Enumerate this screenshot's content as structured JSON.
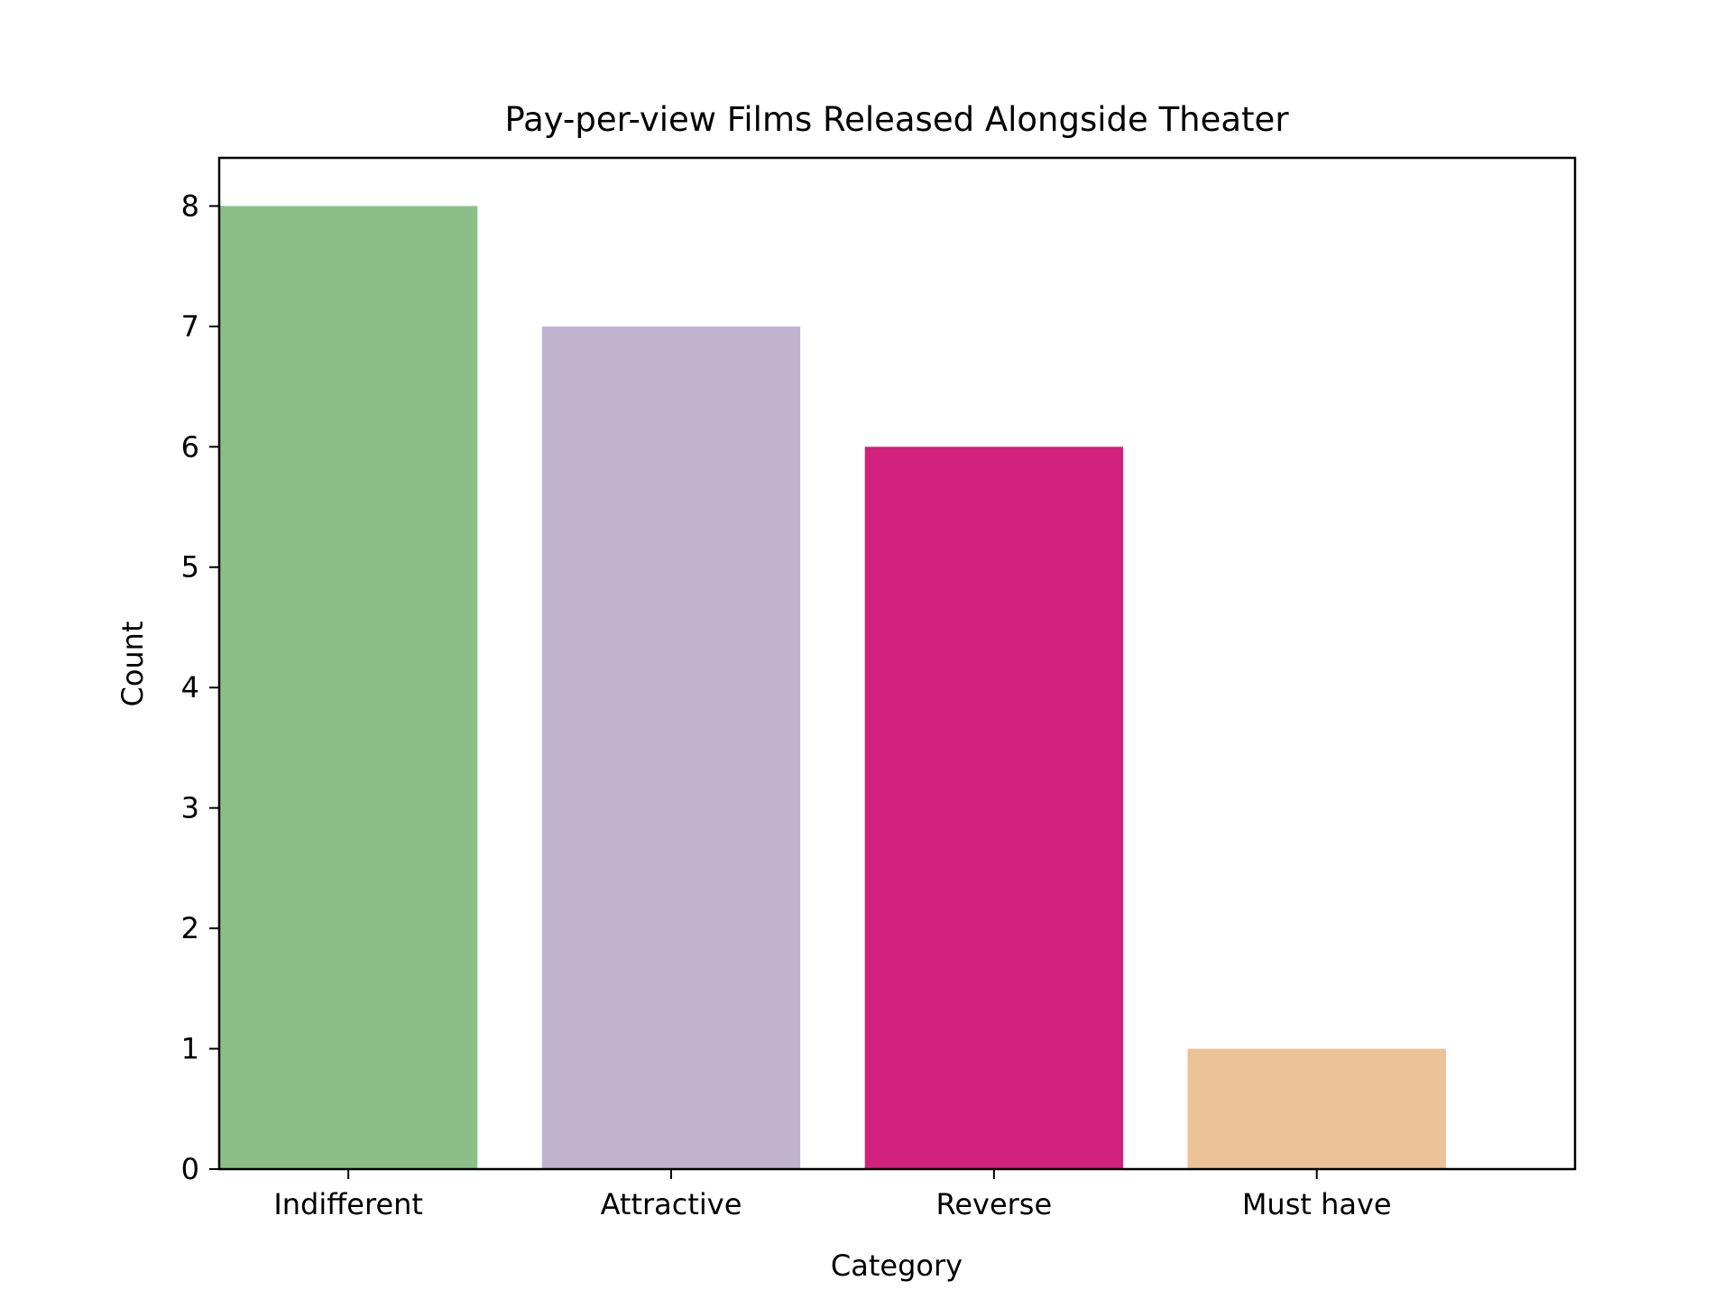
{
  "chart_data": {
    "type": "bar",
    "title": "Pay-per-view Films Released Alongside Theater",
    "xlabel": "Category",
    "ylabel": "Count",
    "categories": [
      "Indifferent",
      "Attractive",
      "Reverse",
      "Must have"
    ],
    "values": [
      8,
      7,
      6,
      1
    ],
    "colors": [
      "#8bbf87",
      "#c0b3cf",
      "#d0217c",
      "#edc196"
    ],
    "ylim": [
      0,
      8.4
    ],
    "yticks": [
      0,
      1,
      2,
      3,
      4,
      5,
      6,
      7,
      8
    ],
    "grid": false,
    "legend": "none"
  }
}
